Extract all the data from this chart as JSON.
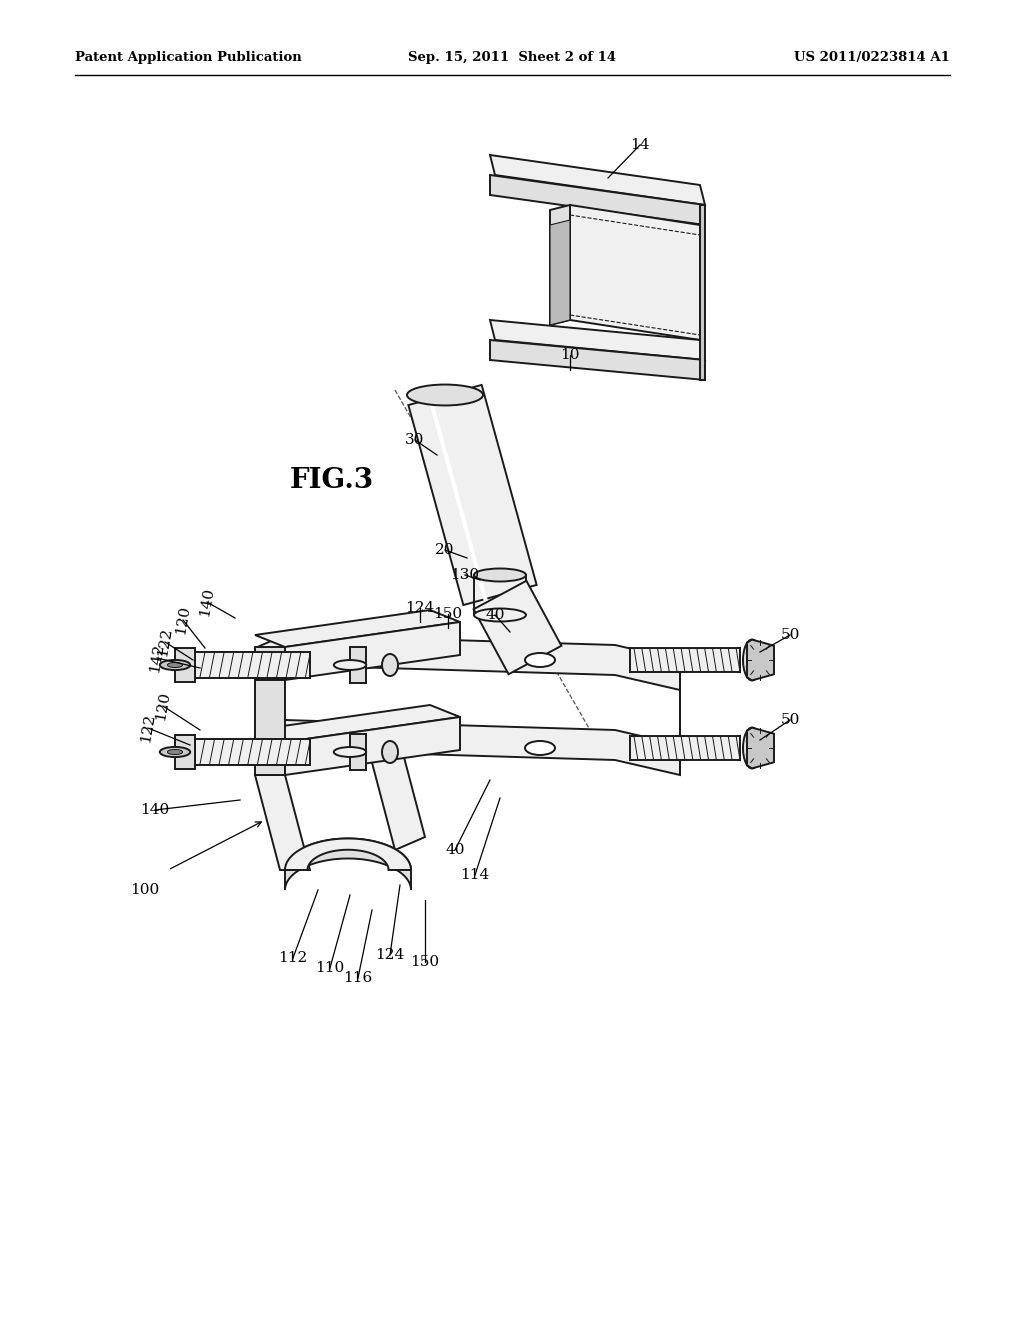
{
  "background_color": "#ffffff",
  "header_left": "Patent Application Publication",
  "header_center": "Sep. 15, 2011  Sheet 2 of 14",
  "header_right": "US 2011/0223814 A1",
  "fig_label": "FIG.3",
  "line_color": "#1a1a1a",
  "fill_light": "#f0f0f0",
  "fill_mid": "#e0e0e0",
  "fill_dark": "#c8c8c8"
}
